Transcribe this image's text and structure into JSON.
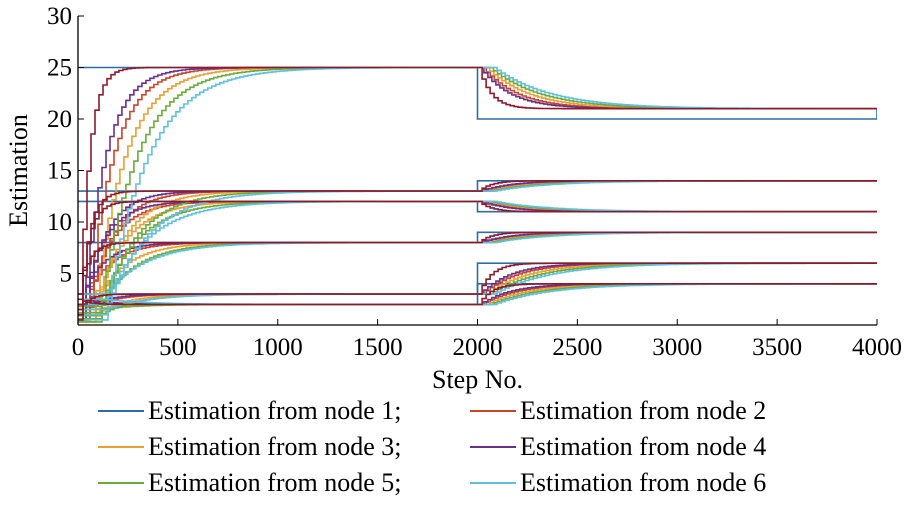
{
  "chart_data": {
    "type": "line",
    "xlabel": "Step No.",
    "ylabel": "Estimation",
    "xlim": [
      0,
      4000
    ],
    "ylim": [
      0,
      30
    ],
    "xticks": [
      0,
      500,
      1000,
      1500,
      2000,
      2500,
      3000,
      3500,
      4000
    ],
    "yticks": [
      5,
      10,
      15,
      20,
      25,
      30
    ],
    "grid": false,
    "legend_position": "below",
    "colors": [
      "#2e6da4",
      "#c8452a",
      "#e8a030",
      "#6b2f8a",
      "#6aab3a",
      "#5fbfe0",
      "#8b1a2b"
    ],
    "series": [
      {
        "name": "Estimation from node 1",
        "separator": "; ",
        "color": "#2e6da4",
        "steps": [
          {
            "x": [
              0,
              2000,
              2000,
              4000
            ],
            "y": [
              25,
              25,
              20,
              21
            ]
          },
          {
            "x": [
              0,
              2000,
              2000,
              4000
            ],
            "y": [
              13,
              13,
              14,
              14
            ]
          },
          {
            "x": [
              0,
              2000,
              2000,
              4000
            ],
            "y": [
              12,
              12,
              11,
              11
            ]
          },
          {
            "x": [
              0,
              2000,
              2000,
              4000
            ],
            "y": [
              8,
              8,
              9,
              9
            ]
          },
          {
            "x": [
              0,
              2000,
              2000,
              4000
            ],
            "y": [
              3,
              3,
              6,
              6
            ]
          },
          {
            "x": [
              0,
              2000,
              2000,
              4000
            ],
            "y": [
              2,
              2,
              4,
              4
            ]
          }
        ]
      },
      {
        "name": "Estimation from node 2",
        "separator": "",
        "color": "#c8452a",
        "lag": 40
      },
      {
        "name": "Estimation from node 3",
        "separator": "; ",
        "color": "#e8a030",
        "lag": 70
      },
      {
        "name": "Estimation from node 4",
        "separator": "",
        "color": "#6b2f8a",
        "lag": 20
      },
      {
        "name": "Estimation from node 5",
        "separator": "; ",
        "color": "#6aab3a",
        "lag": 100
      },
      {
        "name": "Estimation from node 6",
        "separator": "",
        "color": "#5fbfe0",
        "lag": 130
      }
    ],
    "phase1_targets": [
      25,
      13,
      12,
      8,
      3,
      2
    ],
    "phase2_targets": [
      21,
      14,
      11,
      9,
      6,
      4
    ],
    "switch_step": 2000
  }
}
